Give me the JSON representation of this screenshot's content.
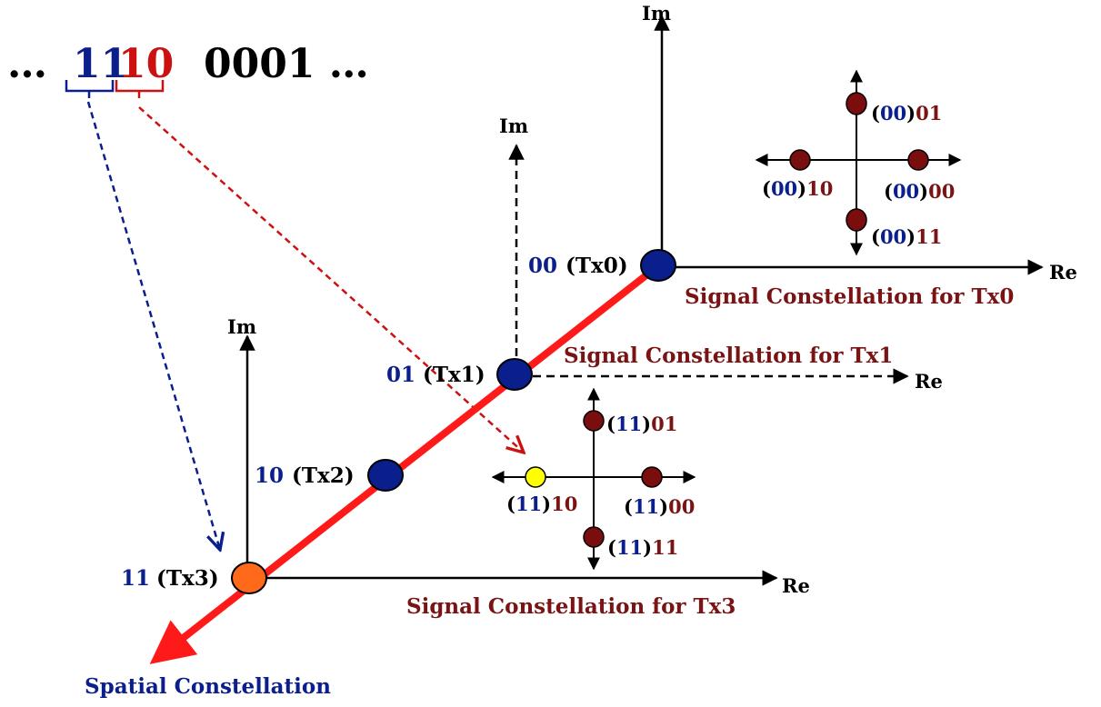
{
  "bitstream": {
    "prefix": "…",
    "bits_blue": "11",
    "bits_red": "10",
    "rest": "0001 …"
  },
  "axes": {
    "im": "Im",
    "re": "Re"
  },
  "antennas": [
    {
      "bits": "00",
      "name": "(Tx0)"
    },
    {
      "bits": "01",
      "name": "(Tx1)"
    },
    {
      "bits": "10",
      "name": "(Tx2)"
    },
    {
      "bits": "11",
      "name": "(Tx3)"
    }
  ],
  "captions": {
    "tx0": "Signal Constellation for Tx0",
    "tx1": "Signal Constellation for Tx1",
    "tx3": "Signal Constellation for Tx3",
    "spatial": "Spatial Constellation"
  },
  "constellation_tx0": {
    "prefix": "00",
    "points": {
      "top": "01",
      "left": "10",
      "right": "00",
      "bottom": "11"
    }
  },
  "constellation_tx3": {
    "prefix": "11",
    "points": {
      "top": "01",
      "left": "10",
      "right": "00",
      "bottom": "11"
    }
  },
  "colors": {
    "blue": "#0a1e8c",
    "dark_red": "#7a1414",
    "bright_red": "#cc1111",
    "spatial_line": "#ff1a1a",
    "orange": "#ff6a1a",
    "yellow": "#ffff00",
    "point_fill": "#7a0d0d"
  }
}
